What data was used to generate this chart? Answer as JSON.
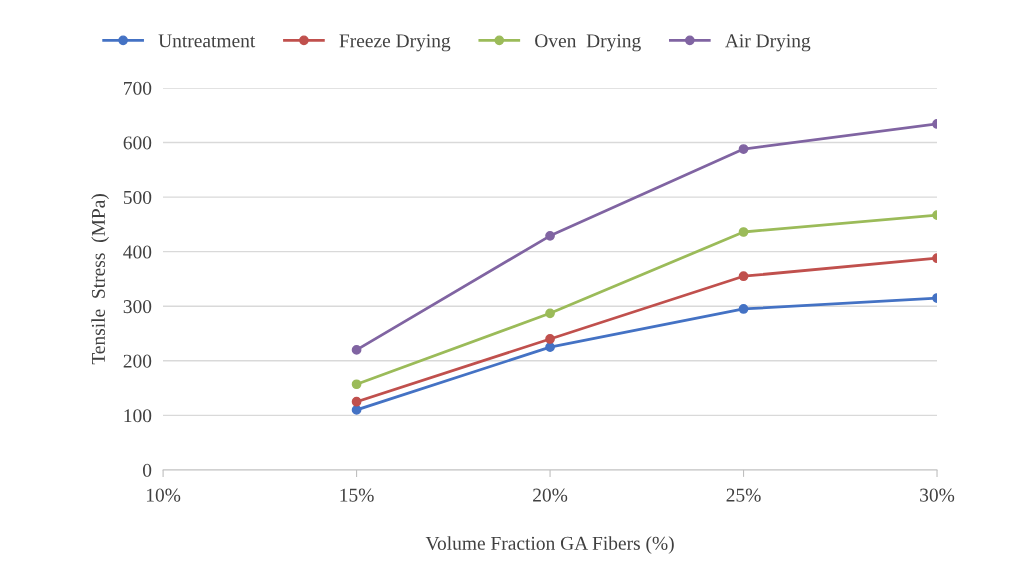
{
  "chart_data": {
    "type": "line",
    "xlabel": "Volume Fraction GA Fibers (%)",
    "ylabel": "Tensile  Stress  (MPa)",
    "x": [
      15,
      20,
      25,
      30
    ],
    "xlim": [
      10,
      30
    ],
    "xticks": [
      {
        "value": 10,
        "label": "10%"
      },
      {
        "value": 15,
        "label": "15%"
      },
      {
        "value": 20,
        "label": "20%"
      },
      {
        "value": 25,
        "label": "25%"
      },
      {
        "value": 30,
        "label": "30%"
      }
    ],
    "ylim": [
      0,
      700
    ],
    "yticks": [
      0,
      100,
      200,
      300,
      400,
      500,
      600,
      700
    ],
    "grid": "y",
    "legend": "top",
    "marker": "circle",
    "line_style": "solid",
    "series": [
      {
        "name": "Untreatment",
        "color": "#4472c4",
        "values": [
          110,
          225,
          295,
          315
        ]
      },
      {
        "name": "Freeze Drying",
        "color": "#c0504d",
        "values": [
          125,
          240,
          355,
          388
        ]
      },
      {
        "name": "Oven  Drying",
        "color": "#9bbb59",
        "values": [
          157,
          287,
          436,
          467
        ]
      },
      {
        "name": "Air Drying",
        "color": "#8064a2",
        "values": [
          220,
          429,
          588,
          634
        ]
      }
    ]
  }
}
